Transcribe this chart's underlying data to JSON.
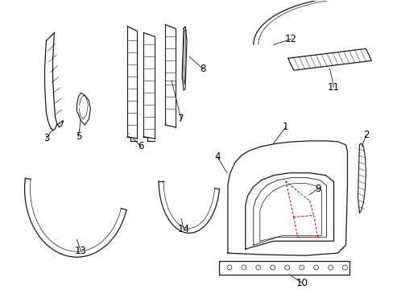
{
  "background_color": "#ffffff",
  "line_color": "#1a1a1a",
  "red_dashed_color": "#cc0000",
  "label_color": "#000000",
  "fig_w": 4.89,
  "fig_h": 3.6,
  "dpi": 100
}
